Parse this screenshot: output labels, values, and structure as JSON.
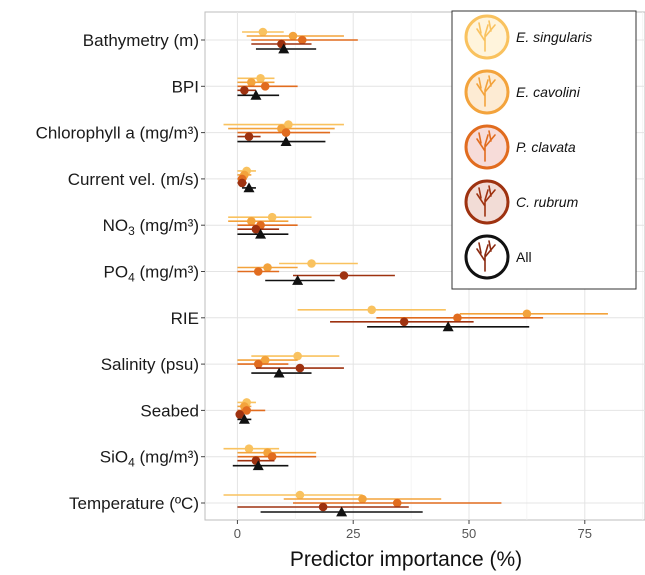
{
  "chart_data": {
    "type": "scatter",
    "subtype": "dot-and-whisker",
    "xlabel": "Predictor importance (%)",
    "xlim": [
      -7,
      88
    ],
    "xticks": [
      0,
      25,
      50,
      75
    ],
    "grid": true,
    "legend_position": "top-right",
    "categories": [
      {
        "text": "Bathymetry",
        "sub": "",
        "tail": " (m)"
      },
      {
        "text": "BPI",
        "sub": "",
        "tail": ""
      },
      {
        "text": "Chlorophyll a (mg/m³)",
        "sub": "",
        "tail": ""
      },
      {
        "text": "Current vel. (m/s)",
        "sub": "",
        "tail": ""
      },
      {
        "text": "NO",
        "sub": "3",
        "tail": " (mg/m³)"
      },
      {
        "text": "PO",
        "sub": "4",
        "tail": " (mg/m³)"
      },
      {
        "text": "RIE",
        "sub": "",
        "tail": ""
      },
      {
        "text": "Salinity",
        "sub": "",
        "tail": " (psu)"
      },
      {
        "text": "Seabed",
        "sub": "",
        "tail": ""
      },
      {
        "text": "SiO",
        "sub": "4",
        "tail": " (mg/m³)"
      },
      {
        "text": "Temperature",
        "sub": "",
        "tail": " (ºC)"
      }
    ],
    "series": [
      {
        "name": "E. singularis",
        "color": "#f9c25f",
        "marker": "circle",
        "values": [
          5.5,
          5,
          11,
          2,
          7.5,
          16,
          29,
          13,
          2,
          2.5,
          13.5
        ],
        "low": [
          1,
          0,
          -3,
          0,
          -2,
          9,
          13,
          3,
          0,
          -3,
          -3
        ],
        "high": [
          10,
          8,
          23,
          4,
          16,
          26,
          45,
          22,
          4,
          9,
          27
        ]
      },
      {
        "name": "E. cavolini",
        "color": "#f3a33c",
        "marker": "circle",
        "values": [
          12,
          3,
          9.5,
          1.5,
          3,
          6.5,
          62.5,
          6,
          1.5,
          6.5,
          27
        ],
        "low": [
          2,
          0,
          -2,
          0,
          -2,
          0,
          48,
          0,
          0,
          0,
          10
        ],
        "high": [
          23,
          8,
          21,
          3,
          11,
          13,
          80,
          13,
          3,
          17,
          44
        ]
      },
      {
        "name": "P. clavata",
        "color": "#e16c1f",
        "marker": "circle",
        "values": [
          14,
          6,
          10.5,
          1,
          5,
          4.5,
          47.5,
          4.5,
          2,
          7.5,
          34.5
        ],
        "low": [
          3,
          0,
          0,
          0,
          0,
          0,
          30,
          0,
          0,
          0,
          12
        ],
        "high": [
          26,
          13,
          20,
          2,
          13,
          9,
          66,
          11,
          6,
          17,
          57
        ]
      },
      {
        "name": "C. rubrum",
        "color": "#9e3210",
        "marker": "circle",
        "values": [
          9.5,
          1.5,
          2.5,
          1,
          4,
          23,
          36,
          13.5,
          0.5,
          4,
          18.5
        ],
        "low": [
          3,
          0,
          0,
          0,
          0,
          12,
          20,
          4,
          0,
          0,
          0
        ],
        "high": [
          16,
          4,
          5,
          2,
          9,
          34,
          51,
          23,
          1,
          8,
          37
        ]
      },
      {
        "name": "All",
        "color": "#111111",
        "marker": "triangle",
        "values": [
          10,
          4,
          10.5,
          2.5,
          5,
          13,
          45.5,
          9,
          1.5,
          4.5,
          22.5
        ],
        "low": [
          4,
          0,
          0,
          1,
          0,
          6,
          28,
          3,
          0,
          -1,
          5
        ],
        "high": [
          17,
          9,
          19,
          4,
          11,
          21,
          63,
          16,
          3,
          11,
          40
        ]
      }
    ]
  }
}
